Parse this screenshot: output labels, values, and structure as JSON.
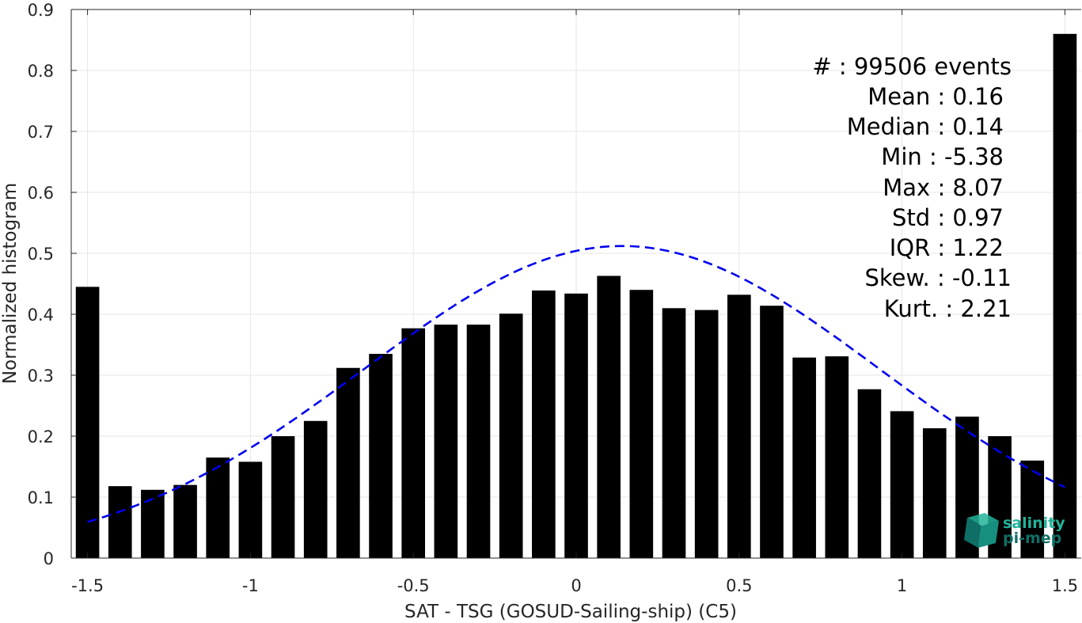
{
  "chart_data": {
    "type": "bar",
    "xlabel": "SAT - TSG (GOSUD-Sailing-ship) (C5)",
    "ylabel": "Normalized histogram",
    "xlim": [
      -1.55,
      1.55
    ],
    "ylim": [
      0,
      0.9
    ],
    "grid": true,
    "xticks": [
      -1.5,
      -1,
      -0.5,
      0,
      0.5,
      1,
      1.5
    ],
    "xtick_labels": [
      "-1.5",
      "-1",
      "-0.5",
      "0",
      "0.5",
      "1",
      "1.5"
    ],
    "yticks": [
      0,
      0.1,
      0.2,
      0.3,
      0.4,
      0.5,
      0.6,
      0.7,
      0.8,
      0.9
    ],
    "ytick_labels": [
      "0",
      "0.1",
      "0.2",
      "0.3",
      "0.4",
      "0.5",
      "0.6",
      "0.7",
      "0.8",
      "0.9"
    ],
    "bar_color": "#000000",
    "bins": [
      -1.5,
      -1.4,
      -1.3,
      -1.2,
      -1.1,
      -1.0,
      -0.9,
      -0.8,
      -0.7,
      -0.6,
      -0.5,
      -0.4,
      -0.3,
      -0.2,
      -0.1,
      0.0,
      0.1,
      0.2,
      0.3,
      0.4,
      0.5,
      0.6,
      0.7,
      0.8,
      0.9,
      1.0,
      1.1,
      1.2,
      1.3,
      1.4,
      1.5
    ],
    "values": [
      0.445,
      0.118,
      0.112,
      0.12,
      0.165,
      0.158,
      0.2,
      0.225,
      0.312,
      0.335,
      0.377,
      0.383,
      0.383,
      0.401,
      0.439,
      0.434,
      0.463,
      0.44,
      0.41,
      0.407,
      0.432,
      0.414,
      0.329,
      0.331,
      0.277,
      0.241,
      0.213,
      0.232,
      0.2,
      0.16,
      0.86
    ],
    "fit_curve": {
      "type": "gaussian",
      "style": "dashed",
      "color": "#0000ee",
      "x_range": [
        -1.5,
        1.5
      ],
      "peak_x": 0.14,
      "peak_y": 0.512,
      "sigma": 0.79
    },
    "stats": [
      "#  : 99506 events",
      "Mean : 0.16",
      "Median : 0.14",
      "Min : -5.38",
      "Max : 8.07",
      "Std : 0.97",
      "IQR : 1.22",
      "Skew. : -0.11",
      "Kurt. : 2.21"
    ]
  },
  "logo": {
    "line1": "salinity",
    "line2": "pi-mep",
    "color_top": "#21b39a",
    "color_bottom": "#0f6f66"
  }
}
